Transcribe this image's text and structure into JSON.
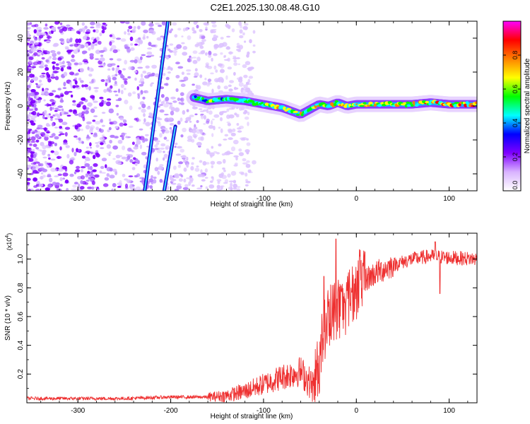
{
  "title": "C2E1.2025.130.08.48.G10",
  "chart_data": [
    {
      "type": "heatmap",
      "xlabel": "Height of straight line (km)",
      "ylabel": "Frequency (Hz)",
      "xlim": [
        -355,
        130
      ],
      "ylim": [
        -50,
        50
      ],
      "x_ticks": [
        -300,
        -200,
        -100,
        0,
        100
      ],
      "y_ticks": [
        -40,
        -20,
        0,
        20,
        40
      ],
      "colorbar": {
        "label": "Normalized spectral amplitude",
        "range": [
          0,
          1
        ],
        "ticks": [
          "0.0",
          "0.2",
          "0.4",
          "0.6",
          "0.8"
        ],
        "colors": [
          "#ffffff",
          "#d9b3ff",
          "#8000ff",
          "#0000ff",
          "#00ffff",
          "#00ff00",
          "#ffff00",
          "#ff8000",
          "#ff0000",
          "#ff00ff"
        ]
      },
      "features": {
        "carrier_track": [
          [
            -175,
            5
          ],
          [
            -160,
            3
          ],
          [
            -140,
            4
          ],
          [
            -120,
            3
          ],
          [
            -100,
            1
          ],
          [
            -80,
            -1
          ],
          [
            -70,
            -3
          ],
          [
            -60,
            -5
          ],
          [
            -50,
            -2
          ],
          [
            -40,
            1
          ],
          [
            -30,
            0
          ],
          [
            -20,
            2
          ],
          [
            -10,
            0
          ],
          [
            0,
            1
          ],
          [
            20,
            1
          ],
          [
            40,
            1
          ],
          [
            60,
            1
          ],
          [
            80,
            2
          ],
          [
            100,
            1
          ],
          [
            130,
            1
          ]
        ],
        "diagonal_lines": [
          {
            "x0": -228,
            "y0": -50,
            "x1": -203,
            "y1": 50
          },
          {
            "x0": -207,
            "y0": -50,
            "x1": -195,
            "y1": -12
          }
        ],
        "noise_region_xmax": -130
      }
    },
    {
      "type": "line",
      "xlabel": "Height of straight line (km)",
      "ylabel": "SNR (10 * v/v)",
      "multiplier": "(x10",
      "multiplier_exp": "4",
      "multiplier_close": ")",
      "xlim": [
        -355,
        130
      ],
      "ylim": [
        0,
        1.18
      ],
      "x_ticks": [
        -300,
        -200,
        -100,
        0,
        100
      ],
      "y_ticks": [
        "0.2",
        "0.4",
        "0.6",
        "0.8",
        "1.0"
      ],
      "color": "#ee3030",
      "envelope": [
        [
          -355,
          0.03
        ],
        [
          -250,
          0.03
        ],
        [
          -200,
          0.04
        ],
        [
          -160,
          0.04
        ],
        [
          -140,
          0.05
        ],
        [
          -120,
          0.08
        ],
        [
          -100,
          0.13
        ],
        [
          -80,
          0.18
        ],
        [
          -60,
          0.22
        ],
        [
          -45,
          0.1
        ],
        [
          -38,
          0.35
        ],
        [
          -30,
          0.6
        ],
        [
          -20,
          0.65
        ],
        [
          -10,
          0.7
        ],
        [
          0,
          0.8
        ],
        [
          10,
          0.86
        ],
        [
          20,
          0.9
        ],
        [
          40,
          0.96
        ],
        [
          60,
          1.0
        ],
        [
          80,
          1.02
        ],
        [
          100,
          1.01
        ],
        [
          130,
          1.0
        ]
      ],
      "spikes": [
        [
          -35,
          0.88
        ],
        [
          -22,
          1.14
        ],
        [
          -10,
          0.78
        ],
        [
          -5,
          0.77
        ],
        [
          85,
          1.12
        ],
        [
          90,
          0.76
        ]
      ]
    }
  ]
}
